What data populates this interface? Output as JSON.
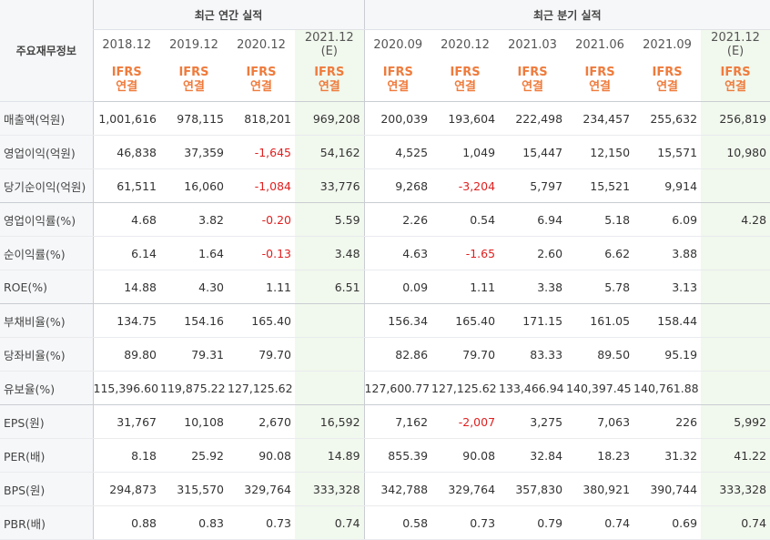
{
  "header": {
    "corner_label": "주요재무정보",
    "annual_title": "최근 연간 실적",
    "quarter_title": "최근 분기 실적",
    "annual_periods": [
      "2018.12",
      "2019.12",
      "2020.12",
      "2021.12"
    ],
    "quarter_periods": [
      "2020.09",
      "2020.12",
      "2021.03",
      "2021.06",
      "2021.09",
      "2021.12"
    ],
    "estimate_mark": "(E)",
    "ifrs_label": "IFRS",
    "basis_label": "연결"
  },
  "rows": [
    {
      "label": "매출액(억원)",
      "values": [
        "1,001,616",
        "978,115",
        "818,201",
        "969,208",
        "200,039",
        "193,604",
        "222,498",
        "234,457",
        "255,632",
        "256,819"
      ]
    },
    {
      "label": "영업이익(억원)",
      "values": [
        "46,838",
        "37,359",
        "-1,645",
        "54,162",
        "4,525",
        "1,049",
        "15,447",
        "12,150",
        "15,571",
        "10,980"
      ]
    },
    {
      "label": "당기순이익(억원)",
      "values": [
        "61,511",
        "16,060",
        "-1,084",
        "33,776",
        "9,268",
        "-3,204",
        "5,797",
        "15,521",
        "9,914",
        ""
      ]
    },
    {
      "label": "영업이익률(%)",
      "values": [
        "4.68",
        "3.82",
        "-0.20",
        "5.59",
        "2.26",
        "0.54",
        "6.94",
        "5.18",
        "6.09",
        "4.28"
      ]
    },
    {
      "label": "순이익률(%)",
      "values": [
        "6.14",
        "1.64",
        "-0.13",
        "3.48",
        "4.63",
        "-1.65",
        "2.60",
        "6.62",
        "3.88",
        ""
      ]
    },
    {
      "label": "ROE(%)",
      "values": [
        "14.88",
        "4.30",
        "1.11",
        "6.51",
        "0.09",
        "1.11",
        "3.38",
        "5.78",
        "3.13",
        ""
      ]
    },
    {
      "label": "부채비율(%)",
      "values": [
        "134.75",
        "154.16",
        "165.40",
        "",
        "156.34",
        "165.40",
        "171.15",
        "161.05",
        "158.44",
        ""
      ]
    },
    {
      "label": "당좌비율(%)",
      "values": [
        "89.80",
        "79.31",
        "79.70",
        "",
        "82.86",
        "79.70",
        "83.33",
        "89.50",
        "95.19",
        ""
      ]
    },
    {
      "label": "유보율(%)",
      "values": [
        "115,396.60",
        "119,875.22",
        "127,125.62",
        "",
        "127,600.77",
        "127,125.62",
        "133,466.94",
        "140,397.45",
        "140,761.88",
        ""
      ]
    },
    {
      "label": "EPS(원)",
      "values": [
        "31,767",
        "10,108",
        "2,670",
        "16,592",
        "7,162",
        "-2,007",
        "3,275",
        "7,063",
        "226",
        "5,992"
      ]
    },
    {
      "label": "PER(배)",
      "values": [
        "8.18",
        "25.92",
        "90.08",
        "14.89",
        "855.39",
        "90.08",
        "32.84",
        "18.23",
        "31.32",
        "41.22"
      ]
    },
    {
      "label": "BPS(원)",
      "values": [
        "294,873",
        "315,570",
        "329,764",
        "333,328",
        "342,788",
        "329,764",
        "357,830",
        "380,921",
        "390,744",
        "333,328"
      ]
    },
    {
      "label": "PBR(배)",
      "values": [
        "0.88",
        "0.83",
        "0.73",
        "0.74",
        "0.58",
        "0.73",
        "0.79",
        "0.74",
        "0.69",
        "0.74"
      ]
    }
  ],
  "colors": {
    "ifrs": "#ef7b3c",
    "estimate_bg": "#f1f8ed",
    "estimate_text": "#6aa84f",
    "negative": "#e02020"
  }
}
